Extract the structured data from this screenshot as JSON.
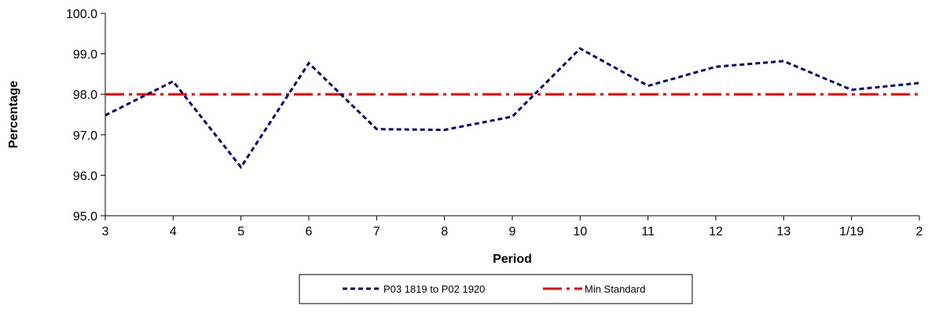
{
  "chart_data": {
    "type": "line",
    "title": "",
    "xlabel": "Period",
    "ylabel": "Percentage",
    "categories": [
      "3",
      "4",
      "5",
      "6",
      "7",
      "8",
      "9",
      "10",
      "11",
      "12",
      "13",
      "1/19",
      "2"
    ],
    "ylim": [
      95.0,
      100.0
    ],
    "yticks": [
      "95.0",
      "96.0",
      "97.0",
      "98.0",
      "99.0",
      "100.0"
    ],
    "grid": false,
    "legend_position": "bottom",
    "series": [
      {
        "name": "P03 1819 to P02 1920",
        "color": "#000080",
        "style": "dashed",
        "values": [
          97.48,
          98.32,
          96.2,
          98.77,
          97.14,
          97.12,
          97.45,
          99.13,
          98.21,
          98.68,
          98.82,
          98.11,
          98.28
        ]
      },
      {
        "name": "Min Standard",
        "color": "#ff0000",
        "style": "dash-dot",
        "values": [
          98.0,
          98.0,
          98.0,
          98.0,
          98.0,
          98.0,
          98.0,
          98.0,
          98.0,
          98.0,
          98.0,
          98.0,
          98.0
        ]
      }
    ]
  }
}
